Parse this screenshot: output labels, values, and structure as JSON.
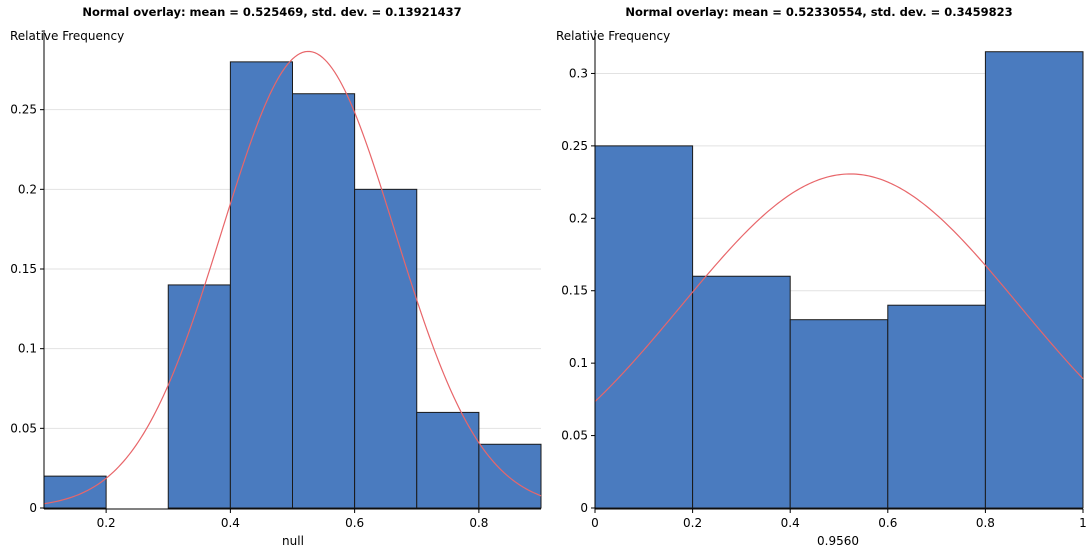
{
  "chart_data": [
    {
      "type": "bar",
      "title": "Normal overlay: mean = 0.525469, std. dev. = 0.13921437",
      "ylabel": "Relative Frequency",
      "xlabel": "null",
      "xlim": [
        0.1,
        0.9
      ],
      "ylim": [
        0,
        0.3
      ],
      "x_ticks": [
        "0.2",
        "0.4",
        "0.6",
        "0.8"
      ],
      "y_ticks": [
        "0",
        "0.05",
        "0.1",
        "0.15",
        "0.2",
        "0.25"
      ],
      "bins": [
        {
          "x0": 0.1,
          "x1": 0.2,
          "value": 0.02
        },
        {
          "x0": 0.2,
          "x1": 0.3,
          "value": 0.0
        },
        {
          "x0": 0.3,
          "x1": 0.4,
          "value": 0.14
        },
        {
          "x0": 0.4,
          "x1": 0.5,
          "value": 0.28
        },
        {
          "x0": 0.5,
          "x1": 0.6,
          "value": 0.26
        },
        {
          "x0": 0.6,
          "x1": 0.7,
          "value": 0.2
        },
        {
          "x0": 0.7,
          "x1": 0.8,
          "value": 0.06
        },
        {
          "x0": 0.8,
          "x1": 0.9,
          "value": 0.04
        }
      ],
      "overlay": {
        "mean": 0.525469,
        "std": 0.13921437,
        "bin_width": 0.1
      },
      "grid": true,
      "colors": {
        "bar": "#4a7bbf",
        "bar_edge": "#1a1a1a",
        "curve": "#e8666a",
        "grid": "#e2e2e2"
      }
    },
    {
      "type": "bar",
      "title": "Normal overlay: mean = 0.52330554, std. dev. = 0.3459823",
      "ylabel": "Relative Frequency",
      "xlabel": "0.9560",
      "xlim": [
        0,
        1
      ],
      "ylim": [
        0,
        0.33
      ],
      "x_ticks": [
        "0",
        "0.2",
        "0.4",
        "0.6",
        "0.8",
        "1"
      ],
      "y_ticks": [
        "0",
        "0.05",
        "0.1",
        "0.15",
        "0.2",
        "0.25",
        "0.3"
      ],
      "bins": [
        {
          "x0": 0.0,
          "x1": 0.2,
          "value": 0.25
        },
        {
          "x0": 0.2,
          "x1": 0.4,
          "value": 0.16
        },
        {
          "x0": 0.4,
          "x1": 0.6,
          "value": 0.13
        },
        {
          "x0": 0.6,
          "x1": 0.8,
          "value": 0.14
        },
        {
          "x0": 0.8,
          "x1": 1.0,
          "value": 0.315
        }
      ],
      "overlay": {
        "mean": 0.52330554,
        "std": 0.3459823,
        "bin_width": 0.2
      },
      "grid": true,
      "colors": {
        "bar": "#4a7bbf",
        "bar_edge": "#1a1a1a",
        "curve": "#e8666a",
        "grid": "#e2e2e2"
      }
    }
  ]
}
